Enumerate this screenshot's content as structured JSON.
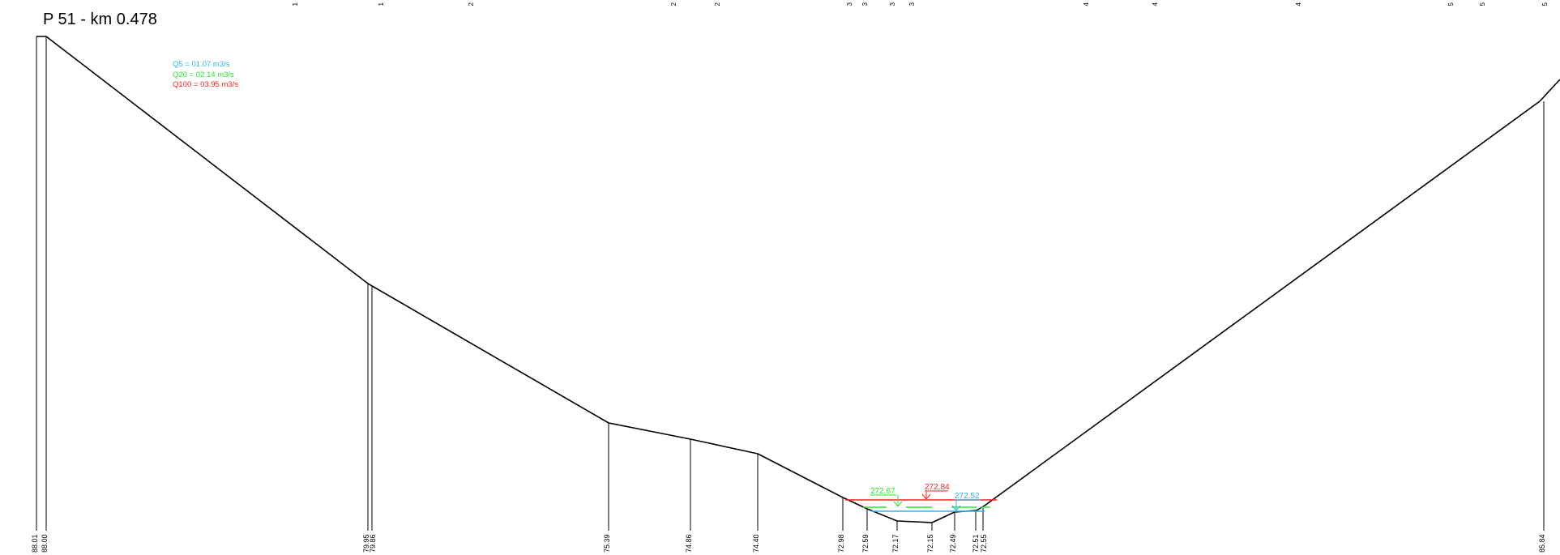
{
  "section": {
    "title": "P 51 - km  0.478"
  },
  "legend": [
    {
      "label": "Q5 = 01.07 m3/s",
      "color": "#29b6e8"
    },
    {
      "label": "Q20 = 02.14 m3/s",
      "color": "#2ee82e"
    },
    {
      "label": "Q100 = 03.95 m3/s",
      "color": "#ff2020"
    }
  ],
  "top_ticks": [
    "1",
    "1",
    "2",
    "2",
    "2",
    "3",
    "3",
    "3",
    "3",
    "4",
    "4",
    "4",
    "5",
    "5",
    "5"
  ],
  "elevation_labels": [
    "88.01",
    "88.00",
    "79.95",
    "79.86",
    "75.39",
    "74.86",
    "74.40",
    "72.98",
    "72.59",
    "72.17",
    "72.15",
    "72.49",
    "72.51",
    "72.55",
    "85.84"
  ],
  "water_levels": [
    {
      "name": "Q100",
      "label": "272.84",
      "color": "#ff2020"
    },
    {
      "name": "Q20",
      "label": "272.67",
      "color": "#2ee82e"
    },
    {
      "name": "Q5",
      "label": "272.52",
      "color": "#29b6e8"
    }
  ]
}
